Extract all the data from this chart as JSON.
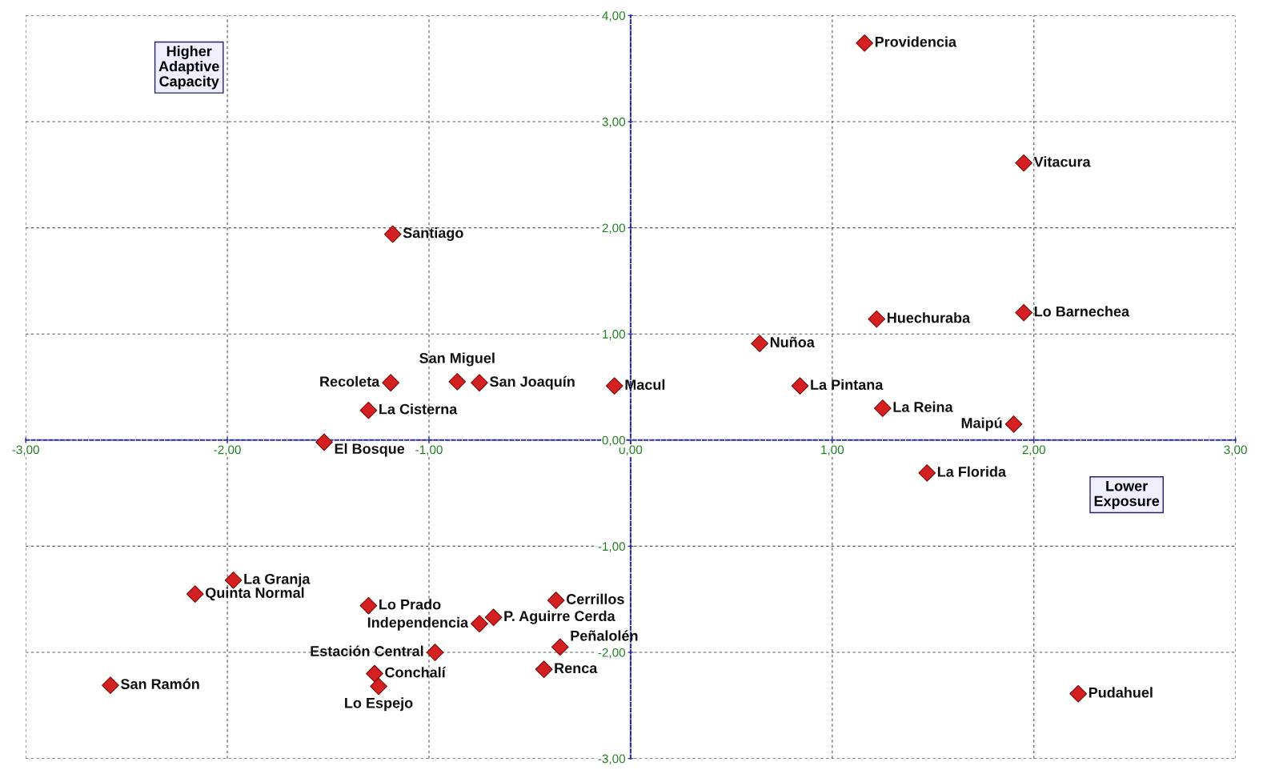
{
  "chart_data": {
    "type": "scatter",
    "marker": "diamond",
    "grid": true,
    "series": [
      {
        "color": "#d42020",
        "x": [
          1.16,
          1.95,
          -1.18,
          1.22,
          1.95,
          0.64,
          -0.86,
          -0.75,
          -1.19,
          -0.08,
          0.84,
          -1.3,
          1.25,
          1.9,
          -1.52,
          1.47,
          -1.97,
          -2.16,
          -1.3,
          -0.37,
          -0.68,
          -0.75,
          -0.35,
          -0.97,
          -0.43,
          -1.27,
          -1.25,
          -2.58,
          2.22
        ],
        "values": [
          3.74,
          2.61,
          1.94,
          1.14,
          1.2,
          0.91,
          0.55,
          0.54,
          0.54,
          0.51,
          0.51,
          0.28,
          0.3,
          0.15,
          -0.02,
          -0.31,
          -1.32,
          -1.45,
          -1.56,
          -1.51,
          -1.67,
          -1.73,
          -1.95,
          -2.0,
          -2.16,
          -2.2,
          -2.32,
          -2.31,
          -2.39
        ]
      }
    ],
    "annotations": [
      {
        "text": "Providencia",
        "x": 1.16,
        "y": 3.74
      },
      {
        "text": "Vitacura",
        "x": 1.95,
        "y": 2.61
      },
      {
        "text": "Santiago",
        "x": -1.18,
        "y": 1.94
      },
      {
        "text": "Huechuraba",
        "x": 1.22,
        "y": 1.14
      },
      {
        "text": "Lo Barnechea",
        "x": 1.95,
        "y": 1.2
      },
      {
        "text": "Nuñoa",
        "x": 0.64,
        "y": 0.91
      },
      {
        "text": "San Miguel",
        "x": -0.86,
        "y": 0.55
      },
      {
        "text": "San Joaquín",
        "x": -0.75,
        "y": 0.54
      },
      {
        "text": "Recoleta",
        "x": -1.19,
        "y": 0.54
      },
      {
        "text": "Macul",
        "x": -0.08,
        "y": 0.51
      },
      {
        "text": "La Pintana",
        "x": 0.84,
        "y": 0.51
      },
      {
        "text": "La Cisterna",
        "x": -1.3,
        "y": 0.28
      },
      {
        "text": "La Reina",
        "x": 1.25,
        "y": 0.3
      },
      {
        "text": "Maipú",
        "x": 1.9,
        "y": 0.15
      },
      {
        "text": "El Bosque",
        "x": -1.52,
        "y": -0.02
      },
      {
        "text": "La Florida",
        "x": 1.47,
        "y": -0.31
      },
      {
        "text": "La Granja",
        "x": -1.97,
        "y": -1.32
      },
      {
        "text": "Quinta Normal",
        "x": -2.16,
        "y": -1.45
      },
      {
        "text": "Lo Prado",
        "x": -1.3,
        "y": -1.56
      },
      {
        "text": "Cerrillos",
        "x": -0.37,
        "y": -1.51
      },
      {
        "text": "P. Aguirre Cerda",
        "x": -0.68,
        "y": -1.67
      },
      {
        "text": "Independencia",
        "x": -0.75,
        "y": -1.73
      },
      {
        "text": "Peñalolén",
        "x": -0.35,
        "y": -1.95
      },
      {
        "text": "Estación Central",
        "x": -0.97,
        "y": -2.0
      },
      {
        "text": "Renca",
        "x": -0.43,
        "y": -2.16
      },
      {
        "text": "Conchalí",
        "x": -1.27,
        "y": -2.2
      },
      {
        "text": "Lo Espejo",
        "x": -1.25,
        "y": -2.32
      },
      {
        "text": "San Ramón",
        "x": -2.58,
        "y": -2.31
      },
      {
        "text": "Pudahuel",
        "x": 2.22,
        "y": -2.39
      },
      "Higher\nAdaptive\nCapacity",
      "Lower\nExposure"
    ],
    "xlim": [
      -3,
      3
    ],
    "ylim": [
      -3,
      4
    ],
    "xticks": [
      {
        "value": -3,
        "label": "-3,00"
      },
      {
        "value": -2,
        "label": "-2,00"
      },
      {
        "value": -1,
        "label": "-1,00"
      },
      {
        "value": 0,
        "label": "0,00"
      },
      {
        "value": 1,
        "label": "1,00"
      },
      {
        "value": 2,
        "label": "2,00"
      },
      {
        "value": 3,
        "label": "3,00"
      }
    ],
    "yticks": [
      {
        "value": -3,
        "label": "-3,00"
      },
      {
        "value": -2,
        "label": "-2,00"
      },
      {
        "value": -1,
        "label": "-1,00"
      },
      {
        "value": 0,
        "label": "0,00"
      },
      {
        "value": 1,
        "label": "1,00"
      },
      {
        "value": 2,
        "label": "2,00"
      },
      {
        "value": 3,
        "label": "3,00"
      },
      {
        "value": 4,
        "label": "4,00"
      }
    ]
  }
}
